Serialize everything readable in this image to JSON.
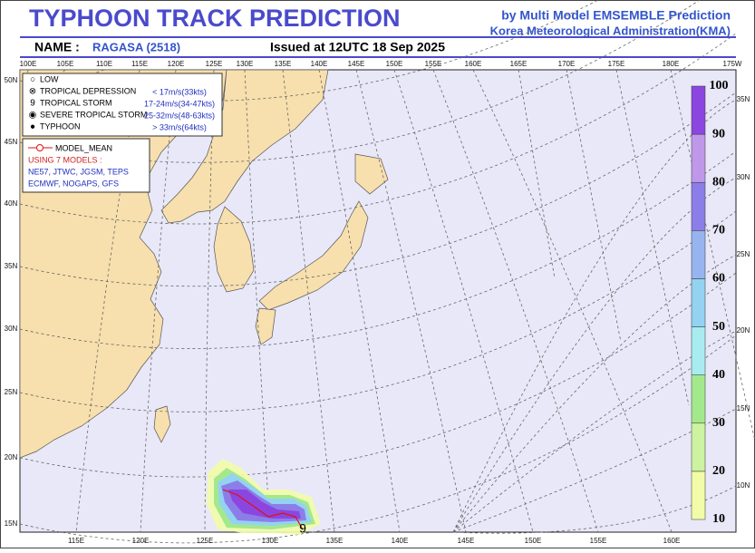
{
  "header": {
    "title": "TYPHOON  TRACK  PREDICTION",
    "credit_line1": "by Multi Model EMSEMBLE Prediction",
    "credit_line2": "Korea Meteorological Administration(KMA)",
    "name_label": "NAME :",
    "name": "RAGASA (2518)",
    "issued": "Issued at  12UTC 18 Sep 2025"
  },
  "map": {
    "top_lon_labels": [
      "100E",
      "105E",
      "110E",
      "115E",
      "120E",
      "125E",
      "130E",
      "135E",
      "140E",
      "145E",
      "150E",
      "155E",
      "160E",
      "165E",
      "170E",
      "175E",
      "180E",
      "175W"
    ],
    "left_lat_labels": [
      "50N",
      "45N",
      "40N",
      "35N",
      "30N",
      "25N",
      "20N",
      "15N"
    ],
    "right_lat_labels": [
      "35N",
      "30N",
      "25N",
      "20N",
      "15N",
      "10N"
    ],
    "bottom_lon_labels": [
      "115E",
      "120E",
      "125E",
      "130E",
      "135E",
      "140E",
      "145E",
      "150E",
      "155E",
      "160E"
    ]
  },
  "legend": {
    "items": [
      {
        "label": "LOW"
      },
      {
        "label": "TROPICAL DEPRESSION",
        "range": "< 17m/s(33kts)"
      },
      {
        "label": "TROPICAL STORM",
        "range": "17-24m/s(34-47kts)"
      },
      {
        "label": "SEVERE TROPICAL STORM",
        "range": "25-32m/s(48-63kts)"
      },
      {
        "label": "TYPHOON",
        "range": "> 33m/s(64kts)"
      }
    ]
  },
  "model_legend": {
    "mean": "MODEL_MEAN",
    "using": "USING 7 MODELS :",
    "models_line1": "NE57, JTWC, JGSM, TEPS",
    "models_line2": "ECMWF, NOGAPS, GFS"
  },
  "colorbar": {
    "labels": [
      10,
      20,
      30,
      40,
      50,
      60,
      70,
      80,
      90,
      100
    ],
    "colors": [
      "#f2fca8",
      "#cdf2a0",
      "#a4e88c",
      "#a8ecf0",
      "#94d2f2",
      "#98b4f0",
      "#8c7ee8",
      "#bf98ea",
      "#8c46e0"
    ]
  }
}
